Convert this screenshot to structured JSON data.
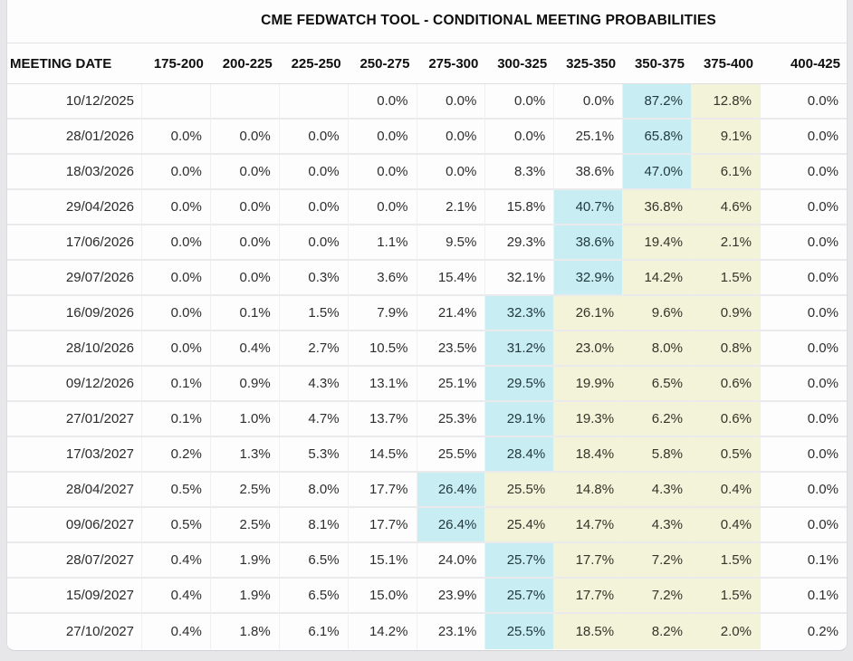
{
  "title": "CME FEDWATCH TOOL - CONDITIONAL MEETING PROBABILITIES",
  "colors": {
    "max_cell_bg": "#c8edf3",
    "trail_cell_bg": "#f3f3da",
    "cell_bg": "#fdfdfd",
    "page_bg": "#e7e7ea"
  },
  "chart_data": {
    "type": "table",
    "title": "CME FEDWATCH TOOL - CONDITIONAL MEETING PROBABILITIES",
    "columns": [
      "MEETING DATE",
      "175-200",
      "200-225",
      "225-250",
      "250-275",
      "275-300",
      "300-325",
      "325-350",
      "350-375",
      "375-400",
      "400-425"
    ],
    "highlight": {
      "max_cell_bg": "#c8edf3",
      "trail_cell_bg": "#f3f3da",
      "note_max": "highest probability cell in row",
      "note_trail": "cells right of row maximum through 375-400"
    },
    "rows": [
      {
        "date": "10/12/2025",
        "values": [
          "",
          "",
          "",
          "0.0%",
          "0.0%",
          "0.0%",
          "0.0%",
          "87.2%",
          "12.8%",
          "0.0%"
        ],
        "max_col": 7,
        "trail_cols": [
          8
        ]
      },
      {
        "date": "28/01/2026",
        "values": [
          "0.0%",
          "0.0%",
          "0.0%",
          "0.0%",
          "0.0%",
          "0.0%",
          "25.1%",
          "65.8%",
          "9.1%",
          "0.0%"
        ],
        "max_col": 7,
        "trail_cols": [
          8
        ]
      },
      {
        "date": "18/03/2026",
        "values": [
          "0.0%",
          "0.0%",
          "0.0%",
          "0.0%",
          "0.0%",
          "8.3%",
          "38.6%",
          "47.0%",
          "6.1%",
          "0.0%"
        ],
        "max_col": 7,
        "trail_cols": [
          8
        ]
      },
      {
        "date": "29/04/2026",
        "values": [
          "0.0%",
          "0.0%",
          "0.0%",
          "0.0%",
          "2.1%",
          "15.8%",
          "40.7%",
          "36.8%",
          "4.6%",
          "0.0%"
        ],
        "max_col": 6,
        "trail_cols": [
          7,
          8
        ]
      },
      {
        "date": "17/06/2026",
        "values": [
          "0.0%",
          "0.0%",
          "0.0%",
          "1.1%",
          "9.5%",
          "29.3%",
          "38.6%",
          "19.4%",
          "2.1%",
          "0.0%"
        ],
        "max_col": 6,
        "trail_cols": [
          7,
          8
        ]
      },
      {
        "date": "29/07/2026",
        "values": [
          "0.0%",
          "0.0%",
          "0.3%",
          "3.6%",
          "15.4%",
          "32.1%",
          "32.9%",
          "14.2%",
          "1.5%",
          "0.0%"
        ],
        "max_col": 6,
        "trail_cols": [
          7,
          8
        ]
      },
      {
        "date": "16/09/2026",
        "values": [
          "0.0%",
          "0.1%",
          "1.5%",
          "7.9%",
          "21.4%",
          "32.3%",
          "26.1%",
          "9.6%",
          "0.9%",
          "0.0%"
        ],
        "max_col": 5,
        "trail_cols": [
          6,
          7,
          8
        ]
      },
      {
        "date": "28/10/2026",
        "values": [
          "0.0%",
          "0.4%",
          "2.7%",
          "10.5%",
          "23.5%",
          "31.2%",
          "23.0%",
          "8.0%",
          "0.8%",
          "0.0%"
        ],
        "max_col": 5,
        "trail_cols": [
          6,
          7,
          8
        ]
      },
      {
        "date": "09/12/2026",
        "values": [
          "0.1%",
          "0.9%",
          "4.3%",
          "13.1%",
          "25.1%",
          "29.5%",
          "19.9%",
          "6.5%",
          "0.6%",
          "0.0%"
        ],
        "max_col": 5,
        "trail_cols": [
          6,
          7,
          8
        ]
      },
      {
        "date": "27/01/2027",
        "values": [
          "0.1%",
          "1.0%",
          "4.7%",
          "13.7%",
          "25.3%",
          "29.1%",
          "19.3%",
          "6.2%",
          "0.6%",
          "0.0%"
        ],
        "max_col": 5,
        "trail_cols": [
          6,
          7,
          8
        ]
      },
      {
        "date": "17/03/2027",
        "values": [
          "0.2%",
          "1.3%",
          "5.3%",
          "14.5%",
          "25.5%",
          "28.4%",
          "18.4%",
          "5.8%",
          "0.5%",
          "0.0%"
        ],
        "max_col": 5,
        "trail_cols": [
          6,
          7,
          8
        ]
      },
      {
        "date": "28/04/2027",
        "values": [
          "0.5%",
          "2.5%",
          "8.0%",
          "17.7%",
          "26.4%",
          "25.5%",
          "14.8%",
          "4.3%",
          "0.4%",
          "0.0%"
        ],
        "max_col": 4,
        "trail_cols": [
          5,
          6,
          7,
          8
        ]
      },
      {
        "date": "09/06/2027",
        "values": [
          "0.5%",
          "2.5%",
          "8.1%",
          "17.7%",
          "26.4%",
          "25.4%",
          "14.7%",
          "4.3%",
          "0.4%",
          "0.0%"
        ],
        "max_col": 4,
        "trail_cols": [
          5,
          6,
          7,
          8
        ]
      },
      {
        "date": "28/07/2027",
        "values": [
          "0.4%",
          "1.9%",
          "6.5%",
          "15.1%",
          "24.0%",
          "25.7%",
          "17.7%",
          "7.2%",
          "1.5%",
          "0.1%"
        ],
        "max_col": 5,
        "trail_cols": [
          6,
          7,
          8
        ]
      },
      {
        "date": "15/09/2027",
        "values": [
          "0.4%",
          "1.9%",
          "6.5%",
          "15.0%",
          "23.9%",
          "25.7%",
          "17.7%",
          "7.2%",
          "1.5%",
          "0.1%"
        ],
        "max_col": 5,
        "trail_cols": [
          6,
          7,
          8
        ]
      },
      {
        "date": "27/10/2027",
        "values": [
          "0.4%",
          "1.8%",
          "6.1%",
          "14.2%",
          "23.1%",
          "25.5%",
          "18.5%",
          "8.2%",
          "2.0%",
          "0.2%"
        ],
        "max_col": 5,
        "trail_cols": [
          6,
          7,
          8
        ]
      }
    ]
  }
}
